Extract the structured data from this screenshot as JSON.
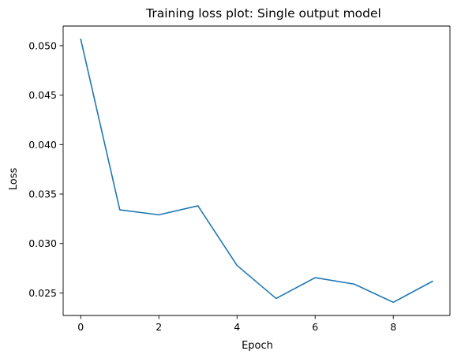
{
  "chart_data": {
    "type": "line",
    "title": "Training loss plot: Single output model",
    "xlabel": "Epoch",
    "ylabel": "Loss",
    "x": [
      0,
      1,
      2,
      3,
      4,
      5,
      6,
      7,
      8,
      9
    ],
    "series": [
      {
        "values": [
          0.05066,
          0.0334,
          0.0329,
          0.03381,
          0.02778,
          0.02444,
          0.02654,
          0.02589,
          0.02405,
          0.02617
        ],
        "color": "#1f77b4"
      }
    ],
    "xticks": [
      0,
      2,
      4,
      6,
      8
    ],
    "xtick_labels": [
      "0",
      "2",
      "4",
      "6",
      "8"
    ],
    "yticks": [
      0.025,
      0.03,
      0.035,
      0.04,
      0.045,
      0.05
    ],
    "ytick_labels": [
      "0.025",
      "0.030",
      "0.035",
      "0.040",
      "0.045",
      "0.050"
    ],
    "xlim": [
      -0.45,
      9.45
    ],
    "ylim": [
      0.02272,
      0.05199
    ],
    "grid": false,
    "legend": false
  }
}
